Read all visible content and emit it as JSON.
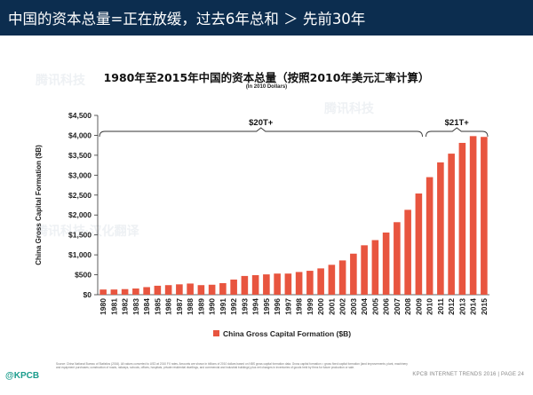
{
  "header": {
    "title": "中国的资本总量=正在放缓，过去6年总和 ＞ 先前30年",
    "background_color": "#0c2d4f"
  },
  "chart_data": {
    "type": "bar",
    "title": "1980年至2015年中国的资本总量（按照2010年美元汇率计算）",
    "subtitle": "(In 2010 Dollars)",
    "ylabel": "China Gross Capital Formation ($B)",
    "xlabel": "",
    "ylim": [
      0,
      4500
    ],
    "yticks": [
      0,
      500,
      1000,
      1500,
      2000,
      2500,
      3000,
      3500,
      4000,
      4500
    ],
    "ytick_labels": [
      "$0",
      "$500",
      "$1,000",
      "$1,500",
      "$2,000",
      "$2,500",
      "$3,000",
      "$3,500",
      "$4,000",
      "$4,500"
    ],
    "grid": false,
    "legend_position": "bottom",
    "bar_color": "#e8553f",
    "categories": [
      "1980",
      "1981",
      "1982",
      "1983",
      "1984",
      "1985",
      "1986",
      "1987",
      "1988",
      "1989",
      "1990",
      "1991",
      "1992",
      "1993",
      "1994",
      "1995",
      "1996",
      "1997",
      "1998",
      "1999",
      "2000",
      "2001",
      "2002",
      "2003",
      "2004",
      "2005",
      "2006",
      "2007",
      "2008",
      "2009",
      "2010",
      "2011",
      "2012",
      "2013",
      "2014",
      "2015"
    ],
    "series": [
      {
        "name": "China Gross Capital Formation ($B)",
        "values": [
          130,
          130,
          140,
          155,
          190,
          225,
          240,
          260,
          280,
          240,
          250,
          290,
          380,
          470,
          490,
          510,
          530,
          530,
          570,
          600,
          660,
          750,
          860,
          1030,
          1240,
          1370,
          1560,
          1820,
          2130,
          2540,
          2950,
          3320,
          3540,
          3810,
          3980,
          3960
        ]
      }
    ],
    "annotations": [
      {
        "label": "$20T+",
        "from": "1980",
        "to": "2009"
      },
      {
        "label": "$21T+",
        "from": "2010",
        "to": "2015"
      }
    ]
  },
  "source": {
    "text": "Source: China National Bureau of Statistics (2016). All values converted to USD at 2010 FX rates. Amounts are shown in billions of 2010 dollars based on NBS gross capital formation data. Gross capital formation = gross fixed capital formation (land improvements; plant, machinery and equipment purchases; construction of roads, railways, schools, offices, hospitals, private residential dwellings, and commercial and industrial buildings) plus net changes in inventories of goods held by firms for future production or sale."
  },
  "footer": {
    "logo": "@KPCB",
    "page": "KPCB INTERNET TRENDS 2016 | PAGE 24"
  },
  "watermarks": [
    "腾讯科技",
    "腾讯科技",
    "腾讯科技·汉化翻译"
  ]
}
